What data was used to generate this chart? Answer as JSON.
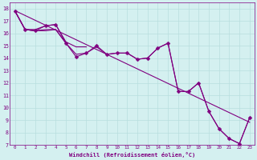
{
  "xlabel": "Windchill (Refroidissement éolien,°C)",
  "xlim": [
    -0.5,
    23.5
  ],
  "ylim": [
    7,
    18.5
  ],
  "yticks": [
    7,
    8,
    9,
    10,
    11,
    12,
    13,
    14,
    15,
    16,
    17,
    18
  ],
  "xticks": [
    0,
    1,
    2,
    3,
    4,
    5,
    6,
    7,
    8,
    9,
    10,
    11,
    12,
    13,
    14,
    15,
    16,
    17,
    18,
    19,
    20,
    21,
    22,
    23
  ],
  "xtick_labels": [
    "0",
    "1",
    "2",
    "3",
    "4",
    "5",
    "6",
    "7",
    "8",
    "9",
    "10",
    "11",
    "12",
    "13",
    "14",
    "15",
    "16",
    "17",
    "18",
    "19",
    "20",
    "21",
    "22",
    "23"
  ],
  "line_color": "#800080",
  "bg_color": "#d4f0f0",
  "grid_color": "#b8dede",
  "series": [
    [
      0,
      17.8
    ],
    [
      1,
      16.3
    ],
    [
      2,
      16.2
    ],
    [
      3,
      16.6
    ],
    [
      4,
      16.7
    ],
    [
      5,
      15.2
    ],
    [
      6,
      14.1
    ],
    [
      7,
      14.4
    ],
    [
      8,
      15.0
    ],
    [
      9,
      14.3
    ],
    [
      10,
      14.4
    ],
    [
      11,
      14.4
    ],
    [
      12,
      13.9
    ],
    [
      13,
      14.0
    ],
    [
      14,
      14.8
    ],
    [
      15,
      15.2
    ],
    [
      16,
      11.3
    ],
    [
      17,
      11.3
    ],
    [
      18,
      12.0
    ],
    [
      19,
      9.7
    ],
    [
      20,
      8.3
    ],
    [
      21,
      7.5
    ],
    [
      22,
      7.1
    ],
    [
      23,
      9.2
    ]
  ],
  "extra_series": [
    [
      [
        0,
        17.8
      ],
      [
        1,
        16.3
      ],
      [
        2,
        16.2
      ],
      [
        3,
        16.2
      ],
      [
        4,
        16.3
      ],
      [
        5,
        15.2
      ],
      [
        6,
        14.3
      ],
      [
        7,
        14.4
      ],
      [
        8,
        14.9
      ],
      [
        9,
        14.3
      ],
      [
        10,
        14.4
      ],
      [
        11,
        14.4
      ],
      [
        12,
        13.9
      ],
      [
        13,
        14.0
      ],
      [
        14,
        14.8
      ],
      [
        15,
        15.2
      ],
      [
        16,
        11.3
      ],
      [
        17,
        11.3
      ],
      [
        18,
        12.0
      ],
      [
        19,
        9.7
      ],
      [
        20,
        8.3
      ],
      [
        21,
        7.5
      ],
      [
        22,
        7.1
      ],
      [
        23,
        9.2
      ]
    ],
    [
      [
        0,
        17.8
      ],
      [
        1,
        16.3
      ],
      [
        2,
        16.3
      ],
      [
        3,
        16.6
      ],
      [
        4,
        16.7
      ],
      [
        5,
        15.3
      ],
      [
        6,
        14.9
      ],
      [
        7,
        14.9
      ]
    ],
    [
      [
        0,
        17.8
      ],
      [
        1,
        16.3
      ],
      [
        2,
        16.2
      ],
      [
        3,
        16.3
      ],
      [
        4,
        16.3
      ],
      [
        5,
        15.2
      ]
    ]
  ],
  "trend_x": [
    0,
    23
  ],
  "trend_y": [
    17.5,
    9.0
  ],
  "marker": "D",
  "marker_size": 2.5,
  "line_width": 0.8,
  "font_color": "#800080",
  "font_size_x": 4.2,
  "font_size_y": 4.8,
  "xlabel_fontsize": 5.0
}
